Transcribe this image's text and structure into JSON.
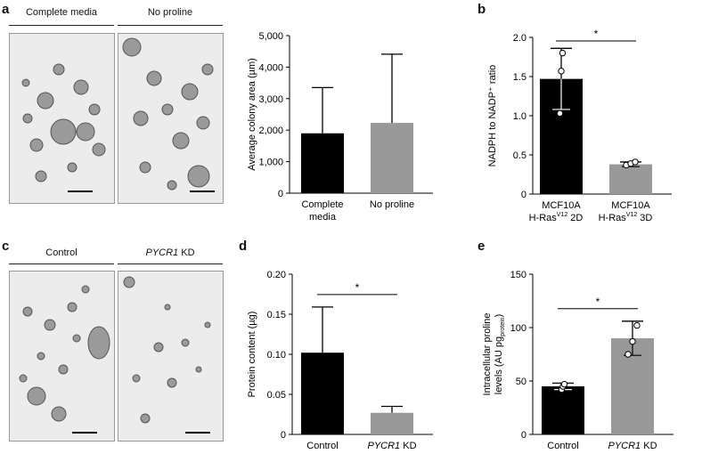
{
  "panels": {
    "a": {
      "label": "a",
      "images": [
        {
          "label": "Complete media"
        },
        {
          "label": "No proline"
        }
      ]
    },
    "b": {
      "label": "b"
    },
    "c": {
      "label": "c",
      "images": [
        {
          "label": "Control"
        },
        {
          "label_italic": "PYCR1",
          "label_rest": " KD"
        }
      ]
    },
    "d": {
      "label": "d"
    },
    "e": {
      "label": "e"
    }
  },
  "chart_data": [
    {
      "id": "a-chart",
      "type": "bar",
      "title": "",
      "ylabel": "Average colony area (µm)",
      "ylim": [
        0,
        5000
      ],
      "yticks": [
        "0",
        "1,000",
        "2,000",
        "3,000",
        "4,000",
        "5,000"
      ],
      "ytick_values": [
        0,
        1000,
        2000,
        3000,
        4000,
        5000
      ],
      "categories": [
        [
          "Complete",
          "media"
        ],
        [
          "No proline"
        ]
      ],
      "values": [
        1900,
        2230
      ],
      "errors": [
        1450,
        2180
      ],
      "colors": [
        "#000000",
        "#999999"
      ]
    },
    {
      "id": "b-chart",
      "type": "bar",
      "title": "",
      "ylabel": "NADPH to NADP⁺ ratio",
      "ylim": [
        0,
        2.0
      ],
      "yticks": [
        "0",
        "0.5",
        "1.0",
        "1.5",
        "2.0"
      ],
      "ytick_values": [
        0,
        0.5,
        1.0,
        1.5,
        2.0
      ],
      "categories": [
        [
          "MCF10A",
          "H-Ras",
          "V12",
          " 2D"
        ],
        [
          "MCF10A",
          "H-Ras",
          "V12",
          " 3D"
        ]
      ],
      "values": [
        1.47,
        0.38
      ],
      "errors": [
        0.39,
        0.03
      ],
      "points": [
        [
          1.03,
          1.57,
          1.8
        ],
        [
          0.37,
          0.39,
          0.41
        ]
      ],
      "colors": [
        "#000000",
        "#999999"
      ],
      "significance": "*"
    },
    {
      "id": "d-chart",
      "type": "bar",
      "title": "",
      "ylabel": "Protein content (µg)",
      "ylim": [
        0,
        0.2
      ],
      "yticks": [
        "0",
        "0.05",
        "0.10",
        "0.15",
        "0.20"
      ],
      "ytick_values": [
        0,
        0.05,
        0.1,
        0.15,
        0.2
      ],
      "categories": [
        [
          "Control"
        ],
        [
          "PYCR1",
          " KD"
        ]
      ],
      "values": [
        0.102,
        0.027
      ],
      "errors": [
        0.057,
        0.008
      ],
      "colors": [
        "#000000",
        "#999999"
      ],
      "significance": "*"
    },
    {
      "id": "e-chart",
      "type": "bar",
      "title": "",
      "ylabel": "Intracellular proline levels (AU pg⁻¹protein)",
      "ylabel_lines": [
        "Intracellular proline",
        "levels (AU pg",
        "protein",
        ")"
      ],
      "ylim": [
        0,
        150
      ],
      "yticks": [
        "0",
        "50",
        "100",
        "150"
      ],
      "ytick_values": [
        0,
        50,
        100,
        150
      ],
      "categories": [
        [
          "Control"
        ],
        [
          "PYCR1",
          " KD"
        ]
      ],
      "values": [
        45,
        90
      ],
      "errors": [
        3,
        16
      ],
      "points": [
        [
          42,
          45,
          47
        ],
        [
          75,
          87,
          102
        ]
      ],
      "colors": [
        "#000000",
        "#999999"
      ],
      "significance": "*"
    }
  ]
}
